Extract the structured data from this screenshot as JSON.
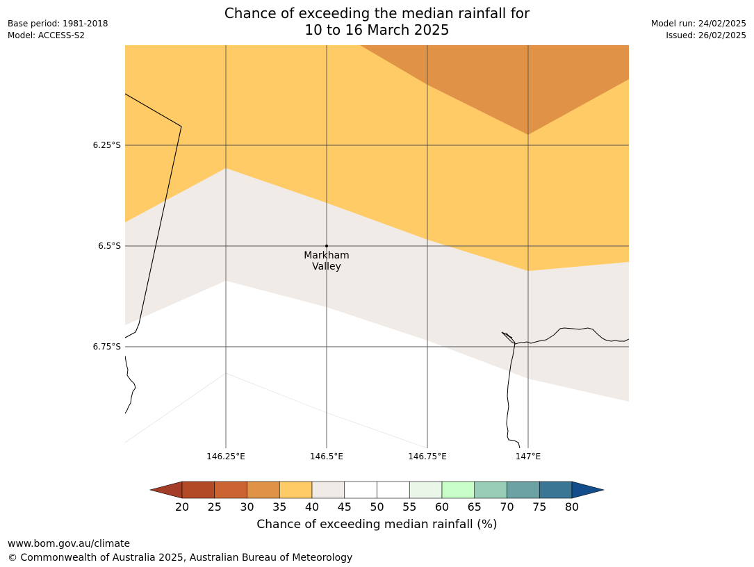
{
  "header": {
    "title_line1": "Chance of exceeding the median rainfall for",
    "title_line2": "10 to 16 March 2025",
    "base_period": "Base period: 1981-2018",
    "model": "Model: ACCESS-S2",
    "model_run": "Model run: 24/02/2025",
    "issued": "Issued: 26/02/2025"
  },
  "map": {
    "latitude_labels": [
      "6.25°S",
      "6.5°S",
      "6.75°S"
    ],
    "longitude_labels": [
      "146.25°E",
      "146.5°E",
      "146.75°E",
      "147°E"
    ],
    "place": {
      "name_line1": "Markham",
      "name_line2": "Valley"
    },
    "zone_colors": {
      "30-35": "#e09346",
      "35-40": "#fecb67",
      "40-45": "#f0ebe6",
      "45-55": "#ffffff"
    }
  },
  "colorbar": {
    "label": "Chance of exceeding median rainfall (%)",
    "ticks": [
      "20",
      "25",
      "30",
      "35",
      "40",
      "45",
      "50",
      "55",
      "60",
      "65",
      "70",
      "75",
      "80"
    ],
    "colors": [
      "#a43d28",
      "#b24a28",
      "#cc6432",
      "#e09346",
      "#fecb67",
      "#f0ebe6",
      "#ffffff",
      "#ffffff",
      "#e9f6e8",
      "#c9fdc7",
      "#9acdb6",
      "#6ca2a4",
      "#3c7695",
      "#134e8a"
    ]
  },
  "footer": {
    "url": "www.bom.gov.au/climate",
    "copyright": "© Commonwealth of Australia 2025, Australian Bureau of Meteorology"
  }
}
